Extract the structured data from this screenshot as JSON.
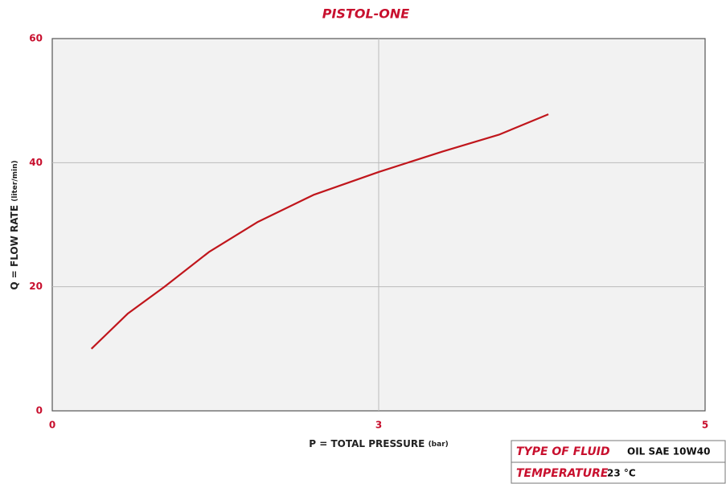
{
  "chart_data": {
    "type": "line",
    "title": "PISTOL-ONE",
    "x_label": "P = TOTAL PRESSURE",
    "x_unit": "(bar)",
    "y_label": "Q = FLOW RATE",
    "y_unit": "(liter/min)",
    "series": [
      {
        "name": "PISTOL-ONE",
        "color": "#c0161c",
        "x": [
          0.3,
          0.58,
          0.86,
          1.2,
          1.57,
          2.0,
          2.5,
          2.99,
          3.42,
          3.8
        ],
        "values": [
          10,
          15.7,
          20,
          25.6,
          30.4,
          34.8,
          38.5,
          41.8,
          44.5,
          47.8
        ]
      }
    ],
    "xlim": [
      0,
      5
    ],
    "xticks": [
      0,
      {
        "value": 2.5,
        "label": "3"
      },
      5
    ],
    "ylim": [
      0,
      60
    ],
    "yticks": [
      0,
      20,
      40,
      60
    ],
    "grid": true
  },
  "info_table": {
    "rows": [
      [
        "TYPE OF FLUID",
        "OIL SAE 10W40"
      ],
      [
        "TEMPERATURE",
        "23 °C"
      ]
    ]
  }
}
